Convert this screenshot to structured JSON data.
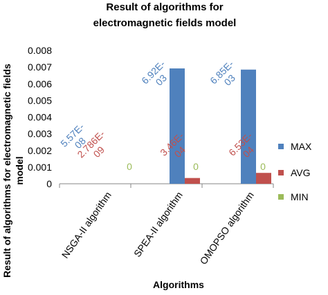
{
  "chart_data": {
    "type": "bar",
    "title_lines": [
      "Result of algorithms for",
      "electromagnetic fields model"
    ],
    "xlabel": "Algorithms",
    "ylabel_lines": [
      "Result of algorithms  for electromagnetic fields",
      "model"
    ],
    "categories": [
      "NSGA-II algorithm",
      "SPEA-II algorithm",
      "OMOPSO algorithm"
    ],
    "ylim": [
      0,
      0.008
    ],
    "yticks": [
      "0",
      "0.001",
      "0.002",
      "0.003",
      "0.004",
      "0.005",
      "0.006",
      "0.007",
      "0.008"
    ],
    "ytick_values": [
      0,
      0.001,
      0.002,
      0.003,
      0.004,
      0.005,
      0.006,
      0.007,
      0.008
    ],
    "grid": false,
    "legend_position": "right",
    "series": [
      {
        "name": "MAX",
        "color": "#4F81BD",
        "values": [
          5.57e-08,
          0.00692,
          0.00685
        ],
        "labels": [
          [
            "5.57E-",
            "08"
          ],
          [
            "6.92E-",
            "03"
          ],
          [
            "6.85E-",
            "03"
          ]
        ]
      },
      {
        "name": "AVG",
        "color": "#C0504D",
        "values": [
          2.786e-09,
          0.000346,
          0.000653
        ],
        "labels": [
          [
            "2.786E-",
            "09"
          ],
          [
            "3.46E-",
            "04"
          ],
          [
            "6.53E-",
            "04"
          ]
        ]
      },
      {
        "name": "MIN",
        "color": "#9BBB59",
        "values": [
          0,
          0,
          0
        ],
        "labels": [
          [
            "0"
          ],
          [
            "0"
          ],
          [
            "0"
          ]
        ]
      }
    ]
  }
}
